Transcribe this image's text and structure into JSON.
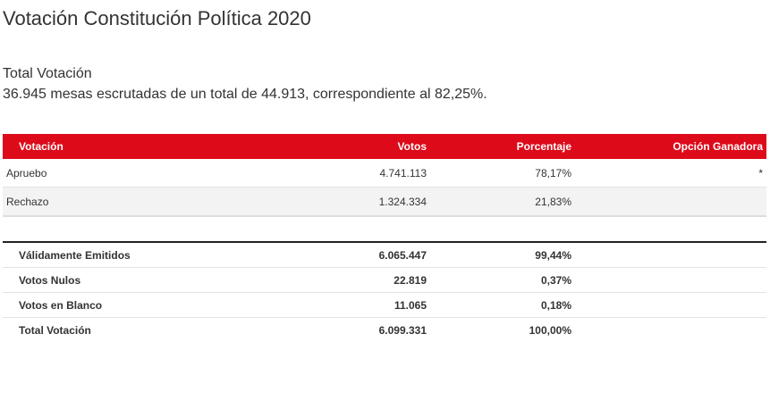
{
  "page": {
    "title": "Votación Constitución Política 2020",
    "subtitle": "Total Votación",
    "summary": "36.945 mesas escrutadas de un total de 44.913, correspondiente al 82,25%."
  },
  "results_table": {
    "headers": {
      "option": "Votación",
      "votes": "Votos",
      "percent": "Porcentaje",
      "winner": "Opción Ganadora"
    },
    "rows": [
      {
        "option": "Apruebo",
        "votes": "4.741.113",
        "percent": "78,17%",
        "winner": "*"
      },
      {
        "option": "Rechazo",
        "votes": "1.324.334",
        "percent": "21,83%",
        "winner": ""
      }
    ]
  },
  "totals_table": {
    "rows": [
      {
        "label": "Válidamente Emitidos",
        "votes": "6.065.447",
        "percent": "99,44%"
      },
      {
        "label": "Votos Nulos",
        "votes": "22.819",
        "percent": "0,37%"
      },
      {
        "label": "Votos en Blanco",
        "votes": "11.065",
        "percent": "0,18%"
      },
      {
        "label": "Total Votación",
        "votes": "6.099.331",
        "percent": "100,00%"
      }
    ]
  },
  "colors": {
    "header_bg": "#dd0a1a",
    "header_text": "#ffffff"
  }
}
